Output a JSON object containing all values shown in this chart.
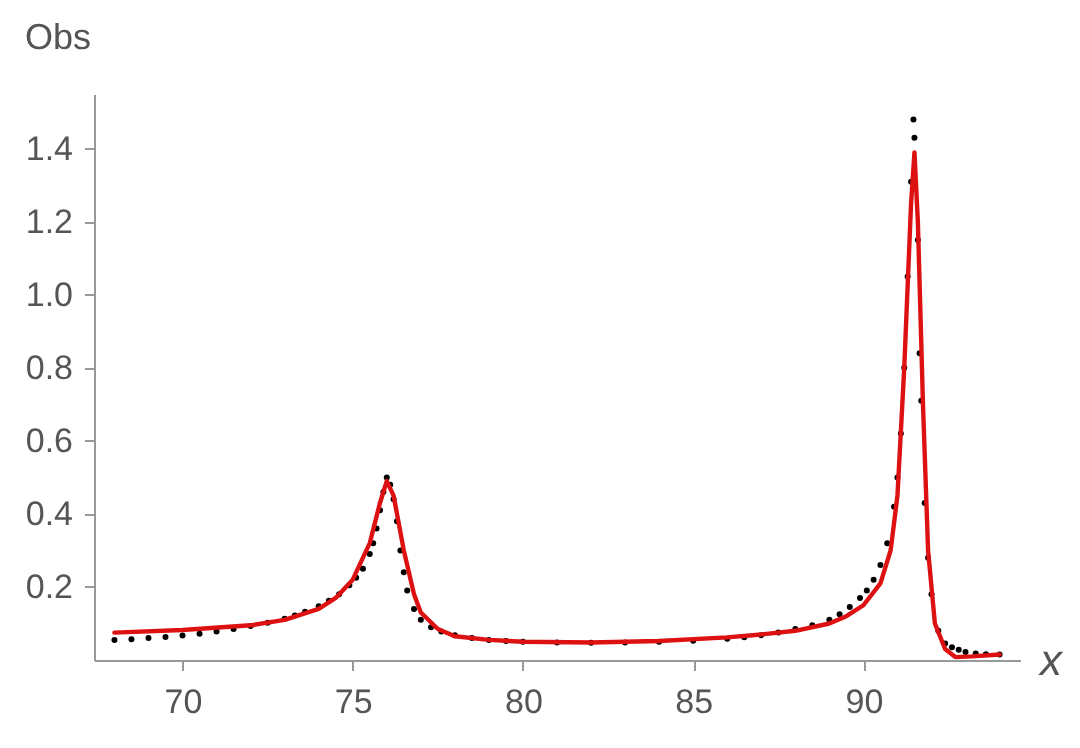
{
  "chart_data": {
    "type": "scatter",
    "xlabel": "x",
    "ylabel": "Obs",
    "xlim": [
      67.4,
      94.6
    ],
    "ylim": [
      0,
      1.55
    ],
    "xticks": [
      70,
      75,
      80,
      85,
      90
    ],
    "yticks": [
      0.2,
      0.4,
      0.6,
      0.8,
      {
        "value": 1,
        "label": "1.0"
      },
      1.2,
      1.4
    ],
    "grid": false,
    "series": [
      {
        "color": "#000000",
        "marker": "circle",
        "x": [
          68,
          68.5,
          69,
          69.5,
          70,
          70.5,
          71,
          71.5,
          72,
          72.5,
          73,
          73.3,
          73.6,
          74,
          74.3,
          74.6,
          74.9,
          75.1,
          75.3,
          75.5,
          75.6,
          75.7,
          75.8,
          75.9,
          76,
          76.1,
          76.2,
          76.3,
          76.4,
          76.5,
          76.6,
          76.8,
          77,
          77.3,
          77.6,
          78,
          78.5,
          79,
          79.5,
          80,
          81,
          82,
          83,
          84,
          85,
          86,
          86.5,
          87,
          87.5,
          88,
          88.5,
          89,
          89.3,
          89.6,
          89.9,
          90.1,
          90.3,
          90.5,
          90.7,
          90.9,
          91,
          91.1,
          91.2,
          91.3,
          91.4,
          91.47,
          91.5,
          91.6,
          91.65,
          91.7,
          91.8,
          91.9,
          92,
          92.2,
          92.4,
          92.6,
          92.8,
          93,
          93.3,
          93.6,
          94
        ],
        "values": [
          0.055,
          0.057,
          0.06,
          0.063,
          0.067,
          0.072,
          0.078,
          0.085,
          0.093,
          0.102,
          0.113,
          0.122,
          0.132,
          0.147,
          0.162,
          0.18,
          0.205,
          0.225,
          0.25,
          0.29,
          0.32,
          0.36,
          0.41,
          0.46,
          0.5,
          0.48,
          0.44,
          0.38,
          0.3,
          0.24,
          0.19,
          0.14,
          0.11,
          0.09,
          0.078,
          0.068,
          0.06,
          0.055,
          0.052,
          0.05,
          0.048,
          0.047,
          0.048,
          0.05,
          0.053,
          0.058,
          0.062,
          0.068,
          0.075,
          0.085,
          0.095,
          0.11,
          0.125,
          0.145,
          0.17,
          0.19,
          0.22,
          0.26,
          0.32,
          0.42,
          0.5,
          0.62,
          0.8,
          1.05,
          1.31,
          1.48,
          1.43,
          1.15,
          0.84,
          0.71,
          0.43,
          0.28,
          0.18,
          0.08,
          0.045,
          0.035,
          0.028,
          0.022,
          0.018,
          0.016,
          0.015
        ]
      },
      {
        "type": "line",
        "color": "#dd1111",
        "marker": "none",
        "line_style": "solid",
        "x": [
          68,
          70,
          72,
          73,
          74,
          74.5,
          75,
          75.5,
          75.8,
          76,
          76.2,
          76.5,
          76.8,
          77,
          77.5,
          78,
          79,
          80,
          82,
          84,
          86,
          87,
          88,
          89,
          89.5,
          90,
          90.5,
          90.8,
          91,
          91.2,
          91.4,
          91.5,
          91.6,
          91.75,
          91.9,
          92.1,
          92.4,
          92.7,
          93.2,
          94
        ],
        "values": [
          0.075,
          0.082,
          0.095,
          0.11,
          0.14,
          0.17,
          0.22,
          0.32,
          0.43,
          0.49,
          0.45,
          0.3,
          0.18,
          0.13,
          0.085,
          0.065,
          0.055,
          0.05,
          0.048,
          0.052,
          0.062,
          0.07,
          0.08,
          0.1,
          0.12,
          0.15,
          0.21,
          0.3,
          0.45,
          0.8,
          1.25,
          1.39,
          1.2,
          0.7,
          0.3,
          0.1,
          0.03,
          0.008,
          0.01,
          0.015
        ]
      }
    ]
  }
}
